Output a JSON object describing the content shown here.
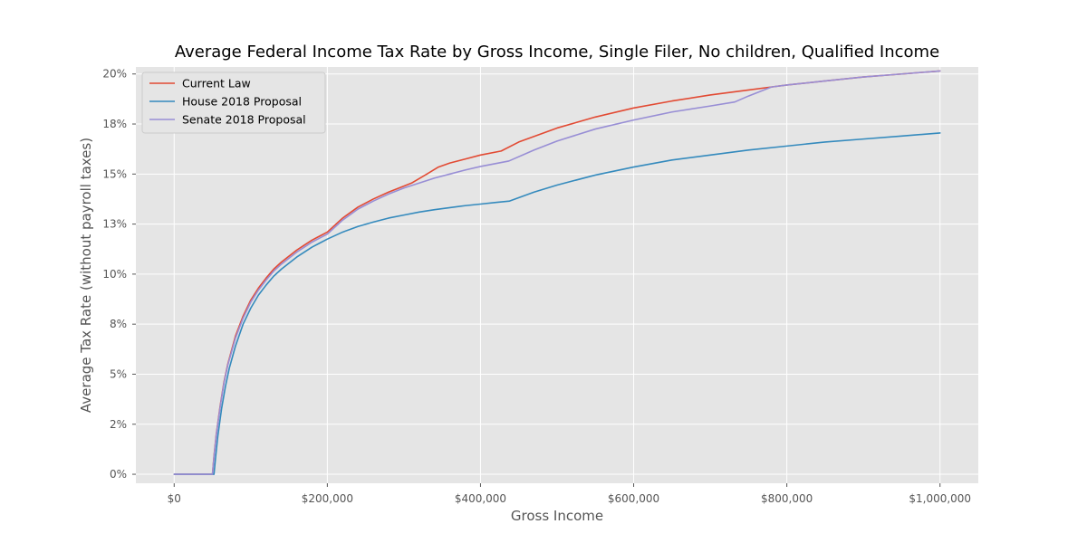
{
  "chart_data": {
    "type": "line",
    "title": "Average Federal Income Tax Rate by Gross Income, Single Filer, No children, Qualified Income",
    "xlabel": "Gross Income",
    "ylabel": "Average Tax Rate (without payroll taxes)",
    "xlim": [
      -50000,
      1050000
    ],
    "ylim": [
      -0.45,
      20.35
    ],
    "grid": true,
    "legend_position": "top-left",
    "x_ticks": [
      {
        "value": 0,
        "label": "$0"
      },
      {
        "value": 200000,
        "label": "$200,000"
      },
      {
        "value": 400000,
        "label": "$400,000"
      },
      {
        "value": 600000,
        "label": "$600,000"
      },
      {
        "value": 800000,
        "label": "$800,000"
      },
      {
        "value": 1000000,
        "label": "$1,000,000"
      }
    ],
    "y_ticks": [
      {
        "value": 0,
        "label": "0%"
      },
      {
        "value": 2.5,
        "label": "2%"
      },
      {
        "value": 5,
        "label": "5%"
      },
      {
        "value": 7.5,
        "label": "8%"
      },
      {
        "value": 10,
        "label": "10%"
      },
      {
        "value": 12.5,
        "label": "13%"
      },
      {
        "value": 15,
        "label": "15%"
      },
      {
        "value": 17.5,
        "label": "18%"
      },
      {
        "value": 20,
        "label": "20%"
      }
    ],
    "series": [
      {
        "name": "Current Law",
        "color": "#E24A33",
        "points": [
          [
            0,
            0
          ],
          [
            25000,
            0
          ],
          [
            50000,
            0
          ],
          [
            52000,
            0.9
          ],
          [
            55000,
            2.0
          ],
          [
            60000,
            3.4
          ],
          [
            65000,
            4.6
          ],
          [
            70000,
            5.5
          ],
          [
            80000,
            6.9
          ],
          [
            90000,
            7.9
          ],
          [
            100000,
            8.7
          ],
          [
            110000,
            9.3
          ],
          [
            120000,
            9.8
          ],
          [
            130000,
            10.25
          ],
          [
            140000,
            10.6
          ],
          [
            150000,
            10.9
          ],
          [
            160000,
            11.2
          ],
          [
            170000,
            11.45
          ],
          [
            180000,
            11.7
          ],
          [
            190000,
            11.9
          ],
          [
            200000,
            12.1
          ],
          [
            220000,
            12.8
          ],
          [
            240000,
            13.35
          ],
          [
            260000,
            13.75
          ],
          [
            280000,
            14.1
          ],
          [
            300000,
            14.4
          ],
          [
            310000,
            14.55
          ],
          [
            330000,
            15.0
          ],
          [
            345000,
            15.35
          ],
          [
            360000,
            15.55
          ],
          [
            380000,
            15.75
          ],
          [
            400000,
            15.95
          ],
          [
            427000,
            16.15
          ],
          [
            450000,
            16.6
          ],
          [
            500000,
            17.3
          ],
          [
            550000,
            17.85
          ],
          [
            600000,
            18.3
          ],
          [
            650000,
            18.65
          ],
          [
            700000,
            18.95
          ],
          [
            750000,
            19.2
          ],
          [
            780000,
            19.35
          ],
          [
            800000,
            19.45
          ],
          [
            850000,
            19.65
          ],
          [
            900000,
            19.85
          ],
          [
            950000,
            20.0
          ],
          [
            1000000,
            20.15
          ]
        ]
      },
      {
        "name": "House 2018 Proposal",
        "color": "#348ABD",
        "points": [
          [
            0,
            0
          ],
          [
            25000,
            0
          ],
          [
            52000,
            0
          ],
          [
            54000,
            0.8
          ],
          [
            57000,
            1.9
          ],
          [
            62000,
            3.3
          ],
          [
            67000,
            4.4
          ],
          [
            72000,
            5.3
          ],
          [
            80000,
            6.4
          ],
          [
            90000,
            7.5
          ],
          [
            100000,
            8.3
          ],
          [
            110000,
            8.95
          ],
          [
            120000,
            9.45
          ],
          [
            130000,
            9.9
          ],
          [
            140000,
            10.25
          ],
          [
            150000,
            10.55
          ],
          [
            160000,
            10.85
          ],
          [
            170000,
            11.1
          ],
          [
            180000,
            11.35
          ],
          [
            190000,
            11.55
          ],
          [
            200000,
            11.75
          ],
          [
            220000,
            12.1
          ],
          [
            240000,
            12.38
          ],
          [
            260000,
            12.6
          ],
          [
            280000,
            12.8
          ],
          [
            300000,
            12.95
          ],
          [
            320000,
            13.1
          ],
          [
            340000,
            13.22
          ],
          [
            360000,
            13.32
          ],
          [
            380000,
            13.42
          ],
          [
            400000,
            13.5
          ],
          [
            420000,
            13.58
          ],
          [
            438000,
            13.65
          ],
          [
            470000,
            14.1
          ],
          [
            500000,
            14.45
          ],
          [
            550000,
            14.95
          ],
          [
            600000,
            15.35
          ],
          [
            650000,
            15.7
          ],
          [
            700000,
            15.95
          ],
          [
            750000,
            16.2
          ],
          [
            800000,
            16.4
          ],
          [
            850000,
            16.6
          ],
          [
            900000,
            16.75
          ],
          [
            950000,
            16.9
          ],
          [
            1000000,
            17.05
          ]
        ]
      },
      {
        "name": "Senate 2018 Proposal",
        "color": "#988ED5",
        "points": [
          [
            0,
            0
          ],
          [
            25000,
            0
          ],
          [
            50000,
            0
          ],
          [
            52000,
            0.85
          ],
          [
            55000,
            1.95
          ],
          [
            60000,
            3.35
          ],
          [
            65000,
            4.55
          ],
          [
            70000,
            5.45
          ],
          [
            80000,
            6.8
          ],
          [
            90000,
            7.8
          ],
          [
            100000,
            8.6
          ],
          [
            110000,
            9.2
          ],
          [
            120000,
            9.7
          ],
          [
            130000,
            10.15
          ],
          [
            140000,
            10.5
          ],
          [
            150000,
            10.8
          ],
          [
            160000,
            11.1
          ],
          [
            170000,
            11.35
          ],
          [
            180000,
            11.6
          ],
          [
            190000,
            11.8
          ],
          [
            200000,
            12.0
          ],
          [
            220000,
            12.7
          ],
          [
            240000,
            13.25
          ],
          [
            260000,
            13.65
          ],
          [
            280000,
            14.0
          ],
          [
            300000,
            14.3
          ],
          [
            320000,
            14.55
          ],
          [
            340000,
            14.8
          ],
          [
            360000,
            15.0
          ],
          [
            380000,
            15.2
          ],
          [
            400000,
            15.38
          ],
          [
            437000,
            15.65
          ],
          [
            470000,
            16.2
          ],
          [
            500000,
            16.65
          ],
          [
            550000,
            17.25
          ],
          [
            600000,
            17.7
          ],
          [
            650000,
            18.1
          ],
          [
            700000,
            18.4
          ],
          [
            732000,
            18.6
          ],
          [
            750000,
            18.9
          ],
          [
            780000,
            19.35
          ],
          [
            800000,
            19.45
          ],
          [
            850000,
            19.65
          ],
          [
            900000,
            19.85
          ],
          [
            950000,
            20.0
          ],
          [
            1000000,
            20.15
          ]
        ]
      }
    ]
  }
}
